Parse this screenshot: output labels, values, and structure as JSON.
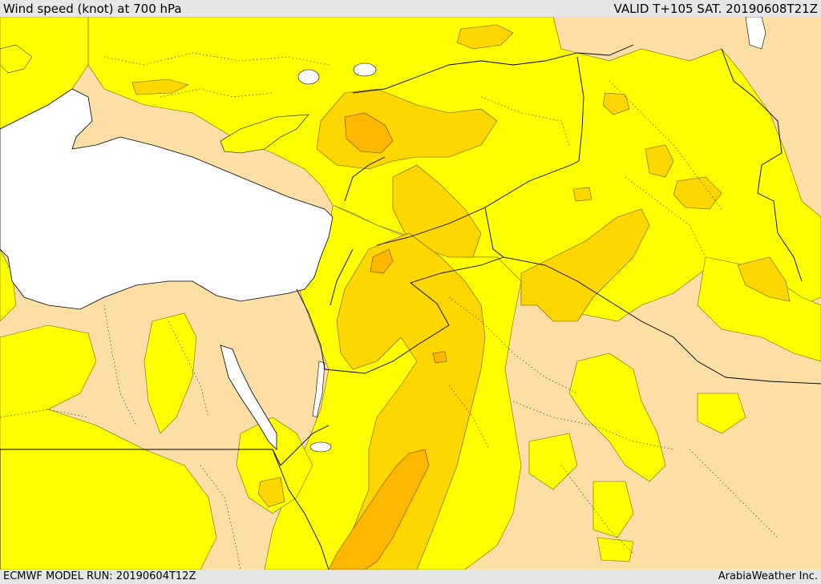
{
  "header": {
    "title": "Wind speed (knot) at 700 hPa",
    "valid": "VALID T+105 SAT. 20190608T21Z"
  },
  "footer": {
    "model_run": "ECMWF MODEL RUN: 20190604T12Z",
    "credit": "ArabiaWeather Inc."
  },
  "map": {
    "variable": "wind speed",
    "unit": "knot",
    "level_hpa": 700,
    "colors": {
      "land_calm": "#fddfa6",
      "band_1": "#ffff00",
      "band_2": "#ffd700",
      "band_3": "#ffb700",
      "sea": "#ffffff",
      "border": "#000000"
    }
  }
}
